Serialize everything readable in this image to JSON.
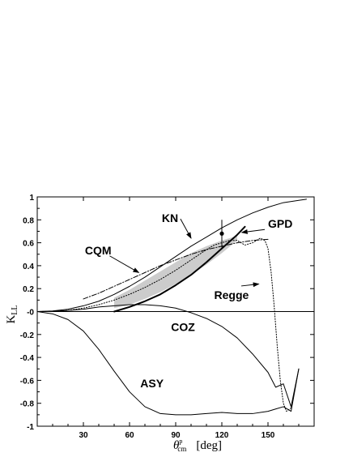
{
  "chart_data": {
    "type": "line",
    "xlabel": "θ^p_cm  [deg]",
    "xlabel_parts": {
      "symbol": "θ",
      "sup": "p",
      "sub": "cm",
      "unit": "[deg]"
    },
    "ylabel": "K_LL",
    "ylabel_parts": {
      "main": "K",
      "sub": "LL"
    },
    "xlim": [
      0,
      180
    ],
    "ylim": [
      -1,
      1
    ],
    "xticks": [
      30,
      60,
      90,
      120,
      150
    ],
    "xtick_labels": [
      "30",
      "60",
      "90",
      "120",
      "150"
    ],
    "yticks": [
      1,
      0.8,
      0.6,
      0.4,
      0.2,
      0,
      -0.2,
      -0.4,
      -0.6,
      -0.8,
      -1
    ],
    "ytick_labels": [
      "1",
      "0.8",
      "0.6",
      "0.4",
      "0.2",
      "-0",
      "-0.2",
      "-0.4",
      "-0.6",
      "-0.8",
      "-1"
    ],
    "grid": false,
    "series": [
      {
        "name": "KN",
        "style": "solid",
        "width": 1,
        "x": [
          0,
          10,
          20,
          30,
          40,
          50,
          60,
          70,
          80,
          90,
          100,
          110,
          120,
          130,
          140,
          150,
          160,
          170,
          175
        ],
        "y": [
          0,
          0.005,
          0.02,
          0.05,
          0.09,
          0.15,
          0.22,
          0.3,
          0.39,
          0.48,
          0.57,
          0.65,
          0.73,
          0.8,
          0.86,
          0.91,
          0.95,
          0.97,
          0.98
        ]
      },
      {
        "name": "CQM",
        "style": "dashdot",
        "width": 1,
        "x": [
          30,
          40,
          50,
          60,
          70,
          80,
          90,
          100,
          110,
          120,
          130,
          140,
          150
        ],
        "y": [
          0.11,
          0.16,
          0.22,
          0.28,
          0.34,
          0.4,
          0.45,
          0.5,
          0.54,
          0.57,
          0.6,
          0.62,
          0.63
        ]
      },
      {
        "name": "GPD",
        "style": "solid",
        "width": 2,
        "x": [
          50,
          60,
          70,
          80,
          90,
          100,
          110,
          120,
          130,
          135
        ],
        "y": [
          0.0,
          0.04,
          0.09,
          0.15,
          0.23,
          0.32,
          0.43,
          0.55,
          0.67,
          0.74
        ]
      },
      {
        "name": "Regge",
        "style": "dotted",
        "width": 1,
        "x": [
          0,
          10,
          20,
          30,
          40,
          50,
          60,
          70,
          80,
          90,
          100,
          110,
          115,
          120,
          125,
          130,
          135,
          140,
          145,
          148,
          150,
          152,
          154,
          156,
          158,
          160,
          162,
          165
        ],
        "y": [
          0,
          0.002,
          0.01,
          0.03,
          0.06,
          0.1,
          0.15,
          0.21,
          0.28,
          0.36,
          0.45,
          0.54,
          0.58,
          0.6,
          0.62,
          0.62,
          0.58,
          0.6,
          0.64,
          0.62,
          0.55,
          0.35,
          0.05,
          -0.3,
          -0.6,
          -0.8,
          -0.87,
          -0.84
        ]
      },
      {
        "name": "COZ",
        "style": "solid",
        "width": 1,
        "x": [
          0,
          10,
          20,
          30,
          40,
          50,
          60,
          70,
          80,
          90,
          100,
          110,
          120,
          130,
          140,
          150,
          155,
          160,
          165,
          170
        ],
        "y": [
          0,
          0.002,
          0.01,
          0.02,
          0.04,
          0.05,
          0.06,
          0.06,
          0.05,
          0.03,
          -0.01,
          -0.06,
          -0.13,
          -0.23,
          -0.37,
          -0.53,
          -0.66,
          -0.63,
          -0.83,
          -0.5
        ]
      },
      {
        "name": "ASY",
        "style": "solid",
        "width": 1,
        "x": [
          0,
          10,
          20,
          30,
          40,
          50,
          60,
          70,
          80,
          90,
          100,
          110,
          120,
          130,
          140,
          150,
          155,
          160,
          165,
          170
        ],
        "y": [
          0,
          -0.02,
          -0.07,
          -0.17,
          -0.33,
          -0.52,
          -0.7,
          -0.83,
          -0.89,
          -0.9,
          -0.9,
          -0.89,
          -0.88,
          -0.89,
          -0.89,
          -0.87,
          -0.85,
          -0.83,
          -0.87,
          -0.5
        ]
      }
    ],
    "band": {
      "name": "GPD",
      "fill": "#cccccc",
      "x": [
        50,
        60,
        70,
        80,
        90,
        100,
        110,
        120,
        130
      ],
      "upper": [
        0.12,
        0.19,
        0.27,
        0.35,
        0.43,
        0.51,
        0.57,
        0.62,
        0.66
      ],
      "lower": [
        0.03,
        0.06,
        0.11,
        0.17,
        0.24,
        0.32,
        0.41,
        0.51,
        0.62
      ]
    },
    "data_point": {
      "x": 120,
      "y": 0.68,
      "yerr": 0.12
    },
    "zero_line": 0,
    "annotations": [
      {
        "text": "KN",
        "tx": 81,
        "ty": 0.78,
        "ax": 100,
        "ay": 0.64
      },
      {
        "text": "GPD",
        "tx": 150,
        "ty": 0.73,
        "ax": 133,
        "ay": 0.69
      },
      {
        "text": "CQM",
        "tx": 31,
        "ty": 0.5,
        "ax": 66,
        "ay": 0.34
      },
      {
        "text": "Regge",
        "tx": 115,
        "ty": 0.11,
        "ax": 144,
        "ay": 0.24
      },
      {
        "text": "COZ",
        "tx": 87,
        "ty": -0.17,
        "ax": null,
        "ay": null
      },
      {
        "text": "ASY",
        "tx": 67,
        "ty": -0.66,
        "ax": null,
        "ay": null
      }
    ]
  }
}
